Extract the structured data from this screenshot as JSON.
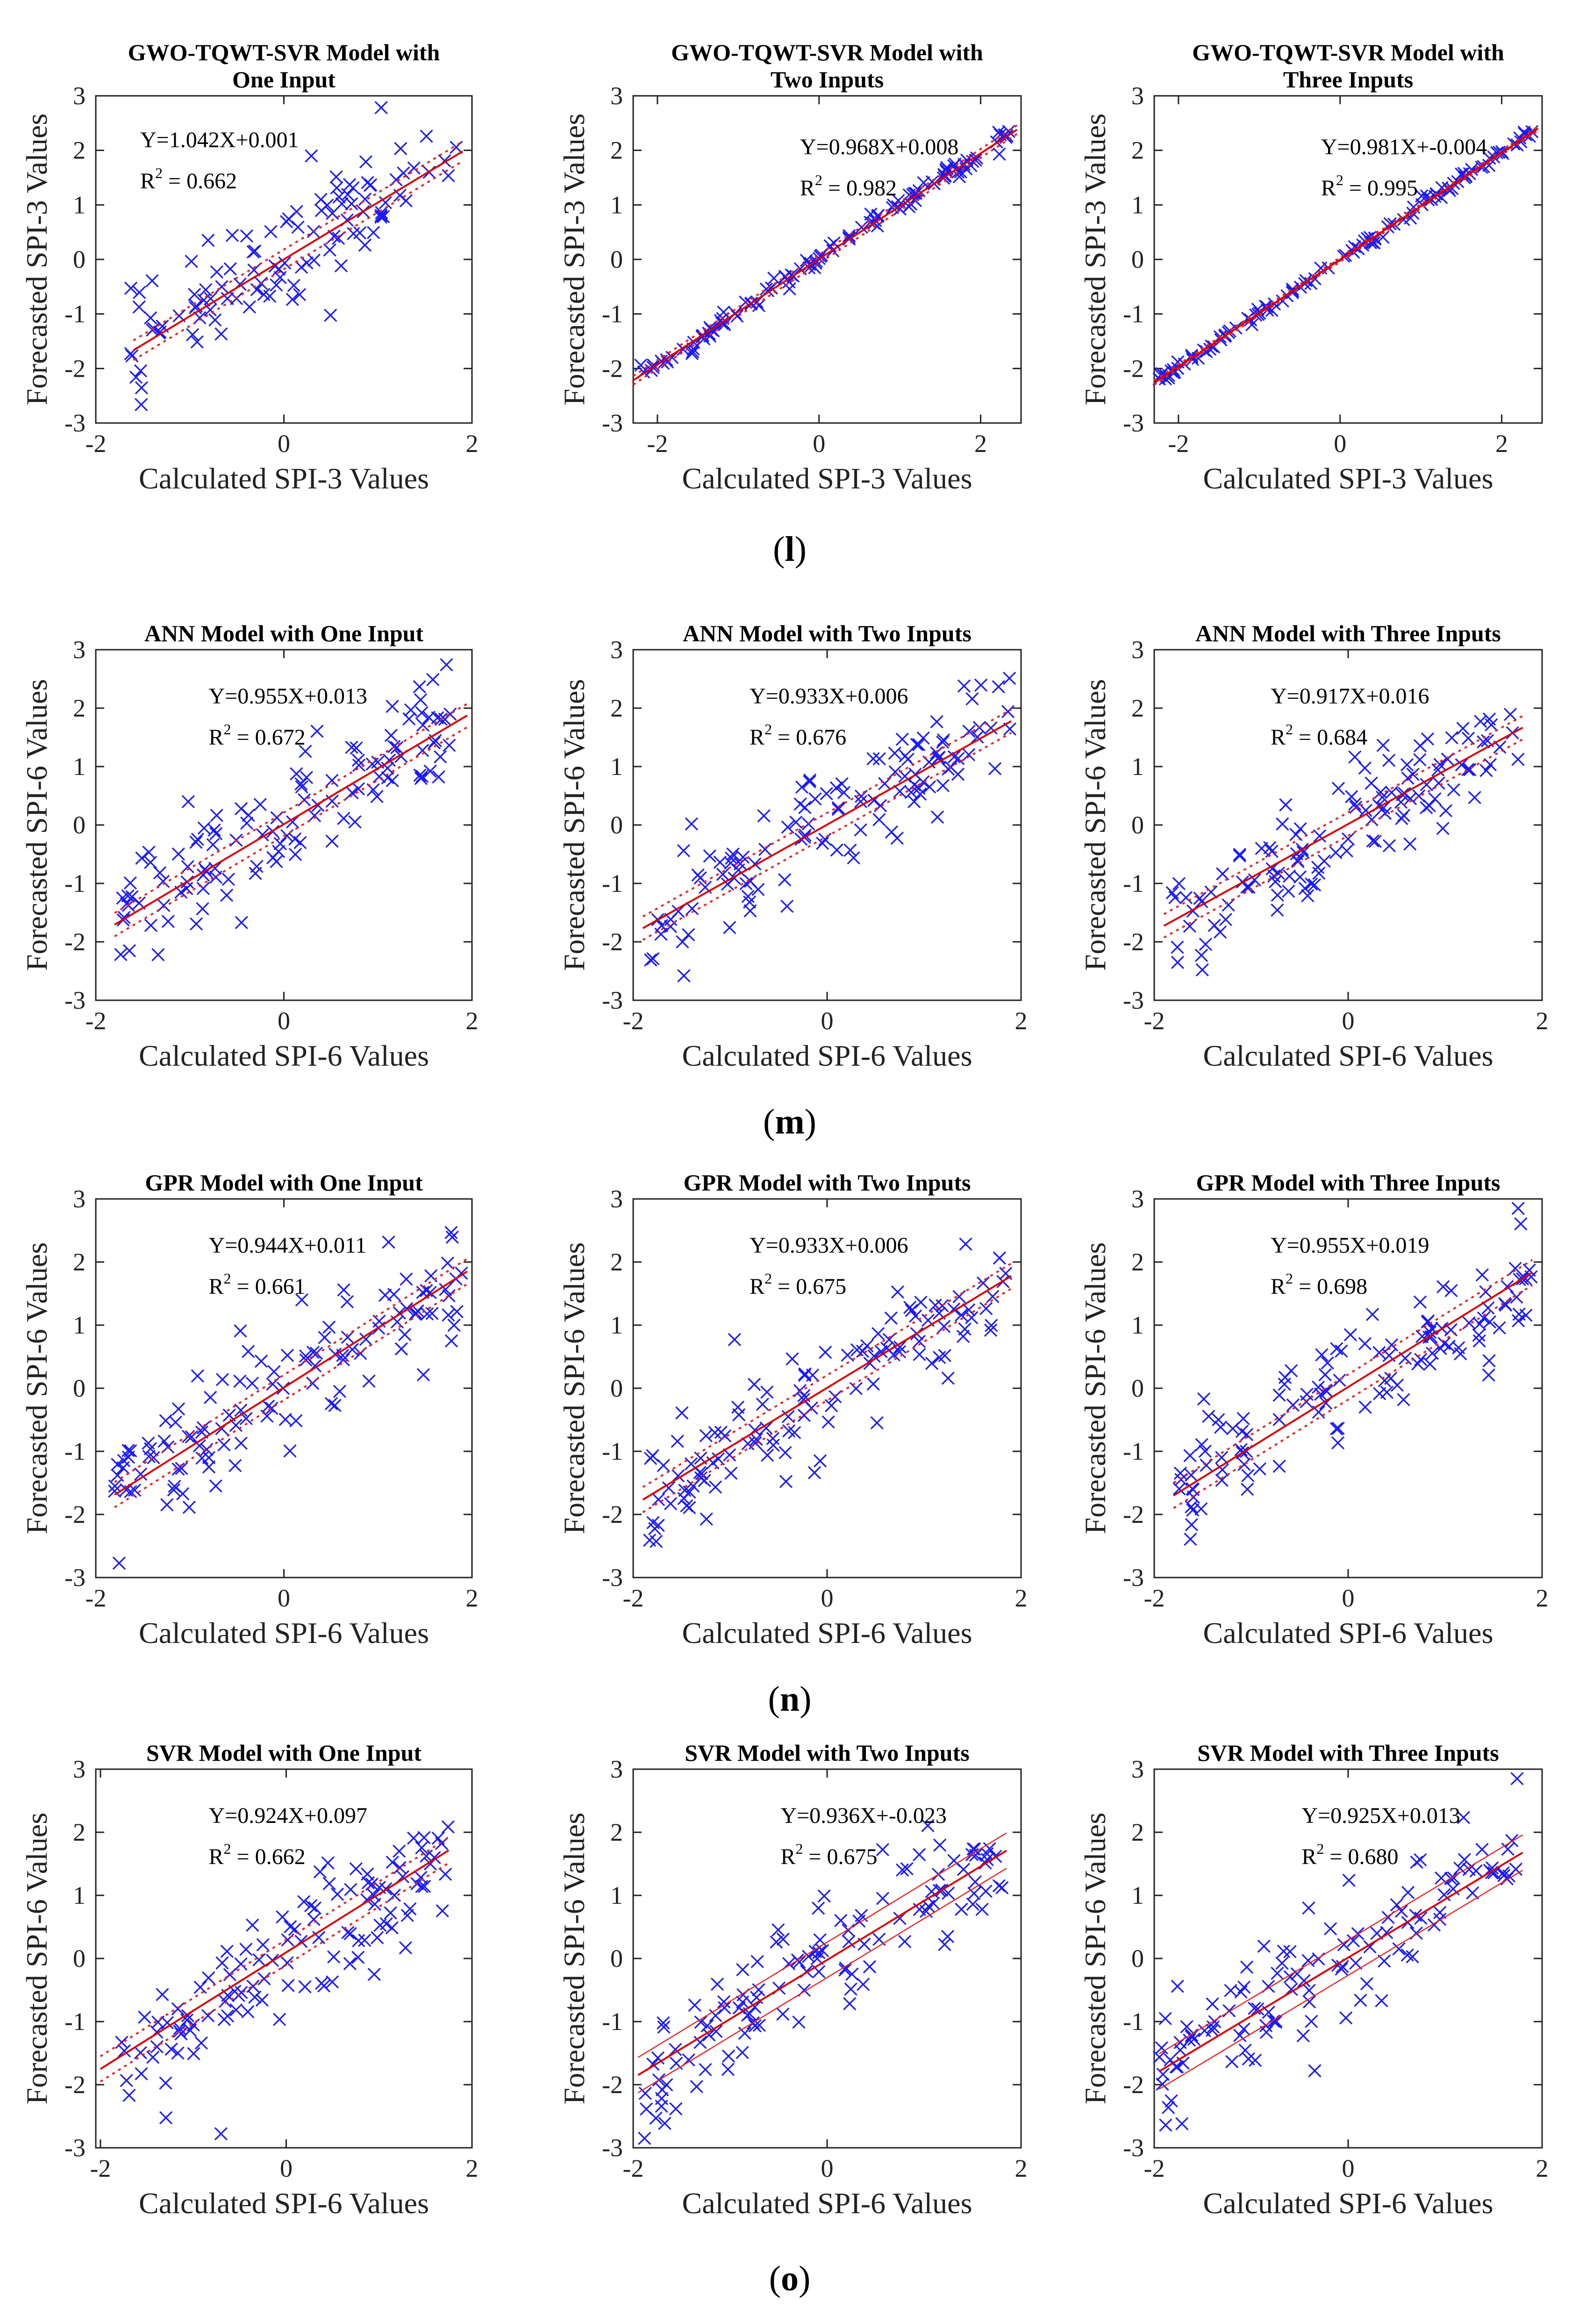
{
  "captions": [
    "(l)",
    "(m)",
    "(n)",
    "(o)"
  ],
  "chart_data": [
    {
      "type": "scatter",
      "title": [
        "GWO-TQWT-SVR Model with",
        "One Input"
      ],
      "xlabel": "Calculated SPI-3 Values",
      "ylabel": "Forecasted SPI-3 Values",
      "xlim": [
        -2,
        2
      ],
      "ylim": [
        -3,
        3
      ],
      "xticks": [
        -2,
        0,
        2
      ],
      "yticks": [
        -3,
        -2,
        -1,
        0,
        1,
        2,
        3
      ],
      "eq": "Y=1.042X+0.001",
      "r2": "0.662",
      "slope": 1.042,
      "intercept": 0.001,
      "xfit": [
        -1.6,
        1.9
      ],
      "band": 0.18,
      "bandStyle": "dotted",
      "seed": 11,
      "noise": 0.55,
      "xmin": -1.65,
      "xmax": 1.85,
      "n": 110,
      "series": [
        {
          "name": "",
          "marker": "x"
        }
      ]
    },
    {
      "type": "scatter",
      "title": [
        "GWO-TQWT-SVR Model with",
        "Two Inputs"
      ],
      "xlabel": "Calculated SPI-3 Values",
      "ylabel": "Forecasted SPI-3 Values",
      "xlim": [
        -2.3,
        2.5
      ],
      "ylim": [
        -3,
        3
      ],
      "xticks": [
        -2,
        0,
        2
      ],
      "yticks": [
        -3,
        -2,
        -1,
        0,
        1,
        2,
        3
      ],
      "eq": "Y=0.968X+0.008",
      "r2": "0.982",
      "slope": 0.968,
      "intercept": 0.008,
      "xfit": [
        -2.3,
        2.45
      ],
      "band": 0.08,
      "bandStyle": "dotted",
      "seed": 12,
      "noise": 0.09,
      "xmin": -2.25,
      "xmax": 2.4,
      "n": 120,
      "series": [
        {
          "name": "",
          "marker": "x"
        }
      ]
    },
    {
      "type": "scatter",
      "title": [
        "GWO-TQWT-SVR Model with",
        "Three Inputs"
      ],
      "xlabel": "Calculated SPI-3 Values",
      "ylabel": "Forecasted SPI-3 Values",
      "xlim": [
        -2.3,
        2.5
      ],
      "ylim": [
        -3,
        3
      ],
      "xticks": [
        -2,
        0,
        2
      ],
      "yticks": [
        -3,
        -2,
        -1,
        0,
        1,
        2,
        3
      ],
      "eq": "Y=0.981X+-0.004",
      "r2": "0.995",
      "slope": 0.981,
      "intercept": -0.004,
      "xfit": [
        -2.3,
        2.45
      ],
      "band": 0.04,
      "bandStyle": "dotted",
      "seed": 13,
      "noise": 0.05,
      "xmin": -2.25,
      "xmax": 2.4,
      "n": 120,
      "series": [
        {
          "name": "",
          "marker": "x"
        }
      ]
    },
    {
      "type": "scatter",
      "title": [
        "ANN Model with One Input"
      ],
      "xlabel": "Calculated SPI-6 Values",
      "ylabel": "Forecasted SPI-6 Values",
      "xlim": [
        -2,
        2
      ],
      "ylim": [
        -3,
        3
      ],
      "xticks": [
        -2,
        0,
        2
      ],
      "yticks": [
        -3,
        -2,
        -1,
        0,
        1,
        2,
        3
      ],
      "eq": "Y=0.955X+0.013",
      "r2": "0.672",
      "slope": 0.955,
      "intercept": 0.013,
      "xfit": [
        -1.8,
        1.95
      ],
      "band": 0.2,
      "bandStyle": "dotted",
      "seed": 21,
      "noise": 0.5,
      "xmin": -1.8,
      "xmax": 1.9,
      "n": 120,
      "series": [
        {
          "name": "",
          "marker": "x"
        }
      ]
    },
    {
      "type": "scatter",
      "title": [
        "ANN Model with Two Inputs"
      ],
      "xlabel": "Calculated SPI-6 Values",
      "ylabel": "Forecasted SPI-6 Values",
      "xlim": [
        -2,
        2
      ],
      "ylim": [
        -3,
        3
      ],
      "xticks": [
        -2,
        0,
        2
      ],
      "yticks": [
        -3,
        -2,
        -1,
        0,
        1,
        2,
        3
      ],
      "eq": "Y=0.933X+0.006",
      "r2": "0.676",
      "slope": 0.933,
      "intercept": 0.006,
      "xfit": [
        -1.9,
        1.9
      ],
      "band": 0.2,
      "bandStyle": "dotted",
      "seed": 22,
      "noise": 0.5,
      "xmin": -1.85,
      "xmax": 1.9,
      "n": 120,
      "series": [
        {
          "name": "",
          "marker": "x"
        }
      ]
    },
    {
      "type": "scatter",
      "title": [
        "ANN Model with Three Inputs"
      ],
      "xlabel": "Calculated SPI-6 Values",
      "ylabel": "Forecasted SPI-6 Values",
      "xlim": [
        -2,
        2
      ],
      "ylim": [
        -3,
        3
      ],
      "xticks": [
        -2,
        0,
        2
      ],
      "yticks": [
        -3,
        -2,
        -1,
        0,
        1,
        2,
        3
      ],
      "eq": "Y=0.917X+0.016",
      "r2": "0.684",
      "slope": 0.917,
      "intercept": 0.016,
      "xfit": [
        -1.9,
        1.8
      ],
      "band": 0.2,
      "bandStyle": "dotted",
      "seed": 23,
      "noise": 0.5,
      "xmin": -1.85,
      "xmax": 1.8,
      "n": 120,
      "series": [
        {
          "name": "",
          "marker": "x"
        }
      ]
    },
    {
      "type": "scatter",
      "title": [
        "GPR Model with One Input"
      ],
      "xlabel": "Calculated SPI-6 Values",
      "ylabel": "Forecasted SPI-6 Values",
      "xlim": [
        -2,
        2
      ],
      "ylim": [
        -3,
        3
      ],
      "xticks": [
        -2,
        0,
        2
      ],
      "yticks": [
        -3,
        -2,
        -1,
        0,
        1,
        2,
        3
      ],
      "eq": "Y=0.944X+0.011",
      "r2": "0.661",
      "slope": 0.944,
      "intercept": 0.011,
      "xfit": [
        -1.8,
        1.95
      ],
      "band": 0.2,
      "bandStyle": "dotted",
      "seed": 31,
      "noise": 0.5,
      "xmin": -1.8,
      "xmax": 1.9,
      "n": 120,
      "series": [
        {
          "name": "",
          "marker": "x"
        }
      ]
    },
    {
      "type": "scatter",
      "title": [
        "GPR Model with Two Inputs"
      ],
      "xlabel": "Calculated SPI-6 Values",
      "ylabel": "Forecasted SPI-6 Values",
      "xlim": [
        -2,
        2
      ],
      "ylim": [
        -3,
        3
      ],
      "xticks": [
        -2,
        0,
        2
      ],
      "yticks": [
        -3,
        -2,
        -1,
        0,
        1,
        2,
        3
      ],
      "eq": "Y=0.933X+0.006",
      "r2": "0.675",
      "slope": 0.933,
      "intercept": 0.006,
      "xfit": [
        -1.9,
        1.9
      ],
      "band": 0.2,
      "bandStyle": "dotted",
      "seed": 32,
      "noise": 0.5,
      "xmin": -1.85,
      "xmax": 1.9,
      "n": 120,
      "series": [
        {
          "name": "",
          "marker": "x"
        }
      ]
    },
    {
      "type": "scatter",
      "title": [
        "GPR Model with Three Inputs"
      ],
      "xlabel": "Calculated SPI-6 Values",
      "ylabel": "Forecasted SPI-6 Values",
      "xlim": [
        -2,
        2
      ],
      "ylim": [
        -3,
        3
      ],
      "xticks": [
        -2,
        0,
        2
      ],
      "yticks": [
        -3,
        -2,
        -1,
        0,
        1,
        2,
        3
      ],
      "eq": "Y=0.955X+0.019",
      "r2": "0.698",
      "slope": 0.955,
      "intercept": 0.019,
      "xfit": [
        -1.8,
        1.9
      ],
      "band": 0.2,
      "bandStyle": "dotted",
      "seed": 33,
      "noise": 0.48,
      "xmin": -1.8,
      "xmax": 1.9,
      "n": 120,
      "series": [
        {
          "name": "",
          "marker": "x"
        }
      ]
    },
    {
      "type": "scatter",
      "title": [
        "SVR Model with One Input"
      ],
      "xlabel": "Calculated SPI-6 Values",
      "ylabel": "Forecasted SPI-6 Values",
      "xlim": [
        -2.05,
        2
      ],
      "ylim": [
        -3,
        3
      ],
      "xticks": [
        -2,
        0,
        2
      ],
      "yticks": [
        -3,
        -2,
        -1,
        0,
        1,
        2,
        3
      ],
      "eq": "Y=0.924X+0.097",
      "r2": "0.662",
      "slope": 0.924,
      "intercept": 0.097,
      "xfit": [
        -2.0,
        1.75
      ],
      "band": 0.2,
      "bandStyle": "dotted",
      "seed": 41,
      "noise": 0.5,
      "xmin": -2.0,
      "xmax": 1.75,
      "n": 120,
      "series": [
        {
          "name": "",
          "marker": "x"
        }
      ]
    },
    {
      "type": "scatter",
      "title": [
        "SVR Model with Two Inputs"
      ],
      "xlabel": "Calculated SPI-6 Values",
      "ylabel": "Forecasted SPI-6 Values",
      "xlim": [
        -2,
        2
      ],
      "ylim": [
        -3,
        3
      ],
      "xticks": [
        -2,
        0,
        2
      ],
      "yticks": [
        -3,
        -2,
        -1,
        0,
        1,
        2,
        3
      ],
      "eq": "Y=0.936X+-0.023",
      "r2": "0.675",
      "slope": 0.936,
      "intercept": -0.023,
      "xfit": [
        -1.95,
        1.85
      ],
      "band": 0.28,
      "bandStyle": "solid",
      "seed": 42,
      "noise": 0.5,
      "xmin": -1.95,
      "xmax": 1.85,
      "n": 120,
      "series": [
        {
          "name": "",
          "marker": "x"
        }
      ]
    },
    {
      "type": "scatter",
      "title": [
        "SVR Model with Three Inputs"
      ],
      "xlabel": "Calculated SPI-6 Values",
      "ylabel": "Forecasted SPI-6 Values",
      "xlim": [
        -2,
        2
      ],
      "ylim": [
        -3,
        3
      ],
      "xticks": [
        -2,
        0,
        2
      ],
      "yticks": [
        -3,
        -2,
        -1,
        0,
        1,
        2,
        3
      ],
      "eq": "Y=0.925X+0.013",
      "r2": "0.680",
      "slope": 0.925,
      "intercept": 0.013,
      "xfit": [
        -1.95,
        1.8
      ],
      "band": 0.28,
      "bandStyle": "solid",
      "seed": 43,
      "noise": 0.5,
      "xmin": -1.95,
      "xmax": 1.8,
      "n": 120,
      "series": [
        {
          "name": "",
          "marker": "x"
        }
      ]
    }
  ]
}
